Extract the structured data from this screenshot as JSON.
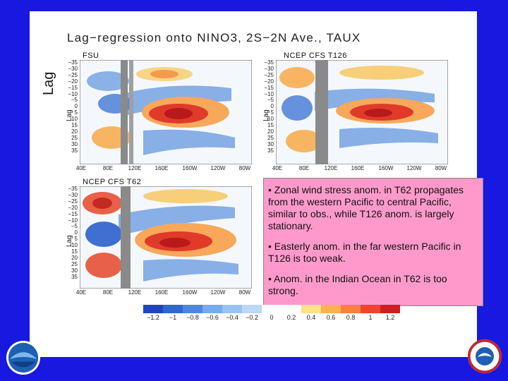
{
  "slide": {
    "title": "Lag−regression onto NINO3, 2S−2N Ave., TAUX",
    "lag_axis_label": "Lag",
    "lag_small_label": "Lag"
  },
  "panels": [
    {
      "label": "FSU"
    },
    {
      "label": "NCEP  CFS  T126"
    },
    {
      "label": "NCEP  CFS  T62"
    }
  ],
  "y_ticks": [
    "−35",
    "−30",
    "−25",
    "−20",
    "−15",
    "−10",
    "−5",
    "0",
    "5",
    "10",
    "15",
    "20",
    "25",
    "30",
    "35"
  ],
  "x_ticks_a": [
    "40E",
    "80E",
    "120E",
    "160E",
    "160W",
    "120W",
    "80W"
  ],
  "x_ticks_b": [
    "40E",
    "80E",
    "120E",
    "160E",
    "160W",
    "120W",
    "80W"
  ],
  "notes": [
    "•  Zonal wind stress anom. in T62 propagates from the western Pacific to central Pacific, similar to obs., while T126 anom. is largely stationary.",
    "•  Easterly anom. in the far western Pacific in T126 is too weak.",
    "•  Anom. in the Indian Ocean in T62 is too strong."
  ],
  "colorbar": {
    "colors": [
      "#2244bb",
      "#3366cc",
      "#4d88dd",
      "#77aaee",
      "#99c4f2",
      "#bcd8f6",
      "#ffffff",
      "#ffffff",
      "#fde08a",
      "#fcb050",
      "#f88040",
      "#ee4430",
      "#cc1f1f"
    ],
    "ticks": [
      "−1.2",
      "−1",
      "−0.8",
      "−0.6",
      "−0.4",
      "−0.2",
      "0",
      "0.2",
      "0.4",
      "0.6",
      "0.8",
      "1",
      "1.2"
    ]
  },
  "logos": {
    "left": "NOAA",
    "right": "NATIONAL WEATHER SERVICE"
  }
}
